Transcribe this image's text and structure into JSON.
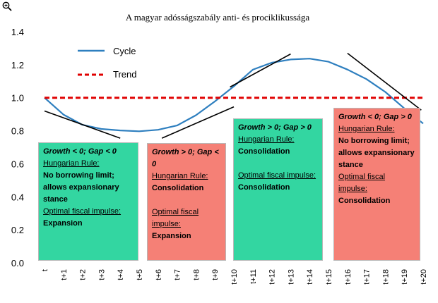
{
  "chart_data": {
    "type": "line",
    "title": "A magyar adósságszabály anti- és prociklikussága",
    "x": [
      "t",
      "t+1",
      "t+2",
      "t+3",
      "t+4",
      "t+5",
      "t+6",
      "t+7",
      "t+8",
      "t+9",
      "t+10",
      "t+11",
      "t+12",
      "t+13",
      "t+14",
      "t+15",
      "t+16",
      "t+17",
      "t+18",
      "t+19",
      "t+20"
    ],
    "series": [
      {
        "name": "Cycle",
        "color": "#2e7fbf",
        "style": "solid",
        "values": [
          1.0,
          0.898,
          0.836,
          0.811,
          0.802,
          0.797,
          0.806,
          0.832,
          0.894,
          0.978,
          1.069,
          1.17,
          1.212,
          1.232,
          1.237,
          1.218,
          1.171,
          1.113,
          1.035,
          0.936,
          0.844
        ]
      },
      {
        "name": "Trend",
        "color": "#e00000",
        "style": "dashed",
        "values": [
          1,
          1,
          1,
          1,
          1,
          1,
          1,
          1,
          1,
          1,
          1,
          1,
          1,
          1,
          1,
          1,
          1,
          1,
          1,
          1,
          1
        ]
      }
    ],
    "ylim": [
      0.0,
      1.4
    ],
    "yticks": [
      "0.0",
      "0.2",
      "0.4",
      "0.6",
      "0.8",
      "1.0",
      "1.2",
      "1.4"
    ],
    "xlabel": "",
    "ylabel": "",
    "tangents": [
      {
        "x1": 0,
        "y1": 0.92,
        "x2": 4,
        "y2": 0.755
      },
      {
        "x1": 6.2,
        "y1": 0.755,
        "x2": 10,
        "y2": 0.945
      },
      {
        "x1": 9.8,
        "y1": 1.065,
        "x2": 13,
        "y2": 1.265
      },
      {
        "x1": 16,
        "y1": 1.27,
        "x2": 19.9,
        "y2": 0.925
      }
    ],
    "boxes": [
      {
        "color": "green",
        "condition": "Growth < 0; Gap < 0",
        "rule_header": "Hungarian Rule:",
        "rule_text": "No borrowing limit; allows expansionary stance",
        "impulse_header": "Optimal fiscal impulse:",
        "impulse_text": "Expansion"
      },
      {
        "color": "red",
        "condition": "Growth > 0; Gap < 0",
        "rule_header": "Hungarian Rule:",
        "rule_text": "Consolidation",
        "impulse_header": "Optimal fiscal impulse:",
        "impulse_text": "Expansion"
      },
      {
        "color": "green",
        "condition": "Growth > 0; Gap > 0",
        "rule_header": "Hungarian Rule:",
        "rule_text": "Consolidation",
        "impulse_header": "Optimal fiscal impulse:",
        "impulse_text": "Consolidation"
      },
      {
        "color": "red",
        "condition": "Growth < 0; Gap > 0",
        "rule_header": "Hungarian Rule:",
        "rule_text": "No borrowing limit; allows expansionary stance",
        "impulse_header": "Optimal fiscal impulse:",
        "impulse_text": "Consolidation"
      }
    ],
    "legend_position": "top-left"
  }
}
